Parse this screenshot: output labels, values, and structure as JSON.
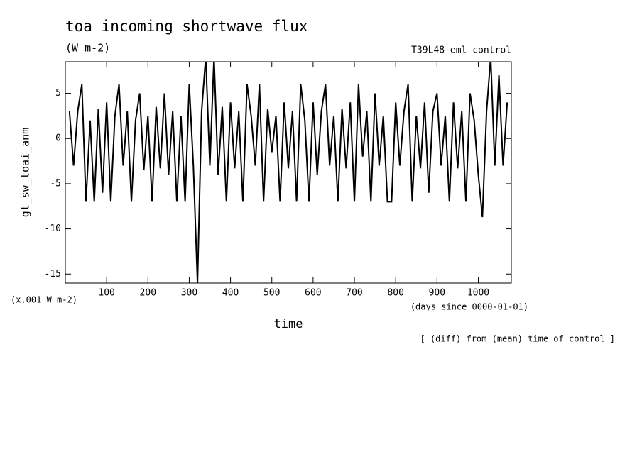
{
  "chart_data": {
    "type": "line",
    "title": "toa incoming shortwave flux",
    "subtitle": "(W m-2)",
    "run_label": "T39L48_eml_control",
    "y_label": "gt_sw_toai_anm",
    "y_unit": "(x.001 W m-2)",
    "x_label": "time",
    "x_unit": "(days since 0000-01-01)",
    "footnote": "[ (diff) from (mean) time of control ]",
    "x": [
      10,
      20,
      30,
      40,
      50,
      60,
      70,
      80,
      90,
      100,
      110,
      120,
      130,
      140,
      150,
      160,
      170,
      180,
      190,
      200,
      210,
      220,
      230,
      240,
      250,
      260,
      270,
      280,
      290,
      300,
      310,
      320,
      330,
      340,
      350,
      360,
      370,
      380,
      390,
      400,
      410,
      420,
      430,
      440,
      450,
      460,
      470,
      480,
      490,
      500,
      510,
      520,
      530,
      540,
      550,
      560,
      570,
      580,
      590,
      600,
      610,
      620,
      630,
      640,
      650,
      660,
      670,
      680,
      690,
      700,
      710,
      720,
      730,
      740,
      750,
      760,
      770,
      780,
      790,
      800,
      810,
      820,
      830,
      840,
      850,
      860,
      870,
      880,
      890,
      900,
      910,
      920,
      930,
      940,
      950,
      960,
      970,
      980,
      990,
      1000,
      1010,
      1020,
      1030,
      1040,
      1050,
      1060,
      1070
    ],
    "series": [
      {
        "name": "gt_sw_toai_anm",
        "color": "#000000",
        "values": [
          3,
          -3,
          3,
          6,
          -7,
          2,
          -7,
          3.3,
          -6,
          4,
          -7,
          2.5,
          6,
          -3,
          3,
          -7,
          2,
          5,
          -3.5,
          2.5,
          -7,
          3.5,
          -3.3,
          5,
          -4,
          3,
          -7,
          2.5,
          -7,
          6,
          -3,
          -16,
          3,
          9,
          -3,
          9,
          -4,
          3.5,
          -7,
          4,
          -3.3,
          3,
          -7,
          6,
          2.5,
          -3,
          6,
          -7,
          3.3,
          -1.5,
          2.5,
          -7,
          4,
          -3.3,
          3,
          -7,
          6,
          2,
          -7,
          4,
          -4,
          3,
          6,
          -3,
          2.5,
          -7,
          3.3,
          -3.3,
          4,
          -7,
          6,
          -2,
          3,
          -7,
          5,
          -3,
          2.5,
          -7,
          -7,
          4,
          -3,
          3,
          6,
          -7,
          2.5,
          -3.3,
          4,
          -6,
          3,
          5,
          -3,
          2.5,
          -7,
          4,
          -3.3,
          3,
          -7,
          5,
          2,
          -4,
          -8.7,
          3,
          9,
          -3,
          7,
          -3,
          4
        ]
      }
    ],
    "xlim": [
      0,
      1080
    ],
    "ylim": [
      -16,
      8.5
    ],
    "xticks": [
      100,
      200,
      300,
      400,
      500,
      600,
      700,
      800,
      900,
      1000
    ],
    "yticks": [
      -15,
      -10,
      -5,
      0,
      5
    ]
  }
}
